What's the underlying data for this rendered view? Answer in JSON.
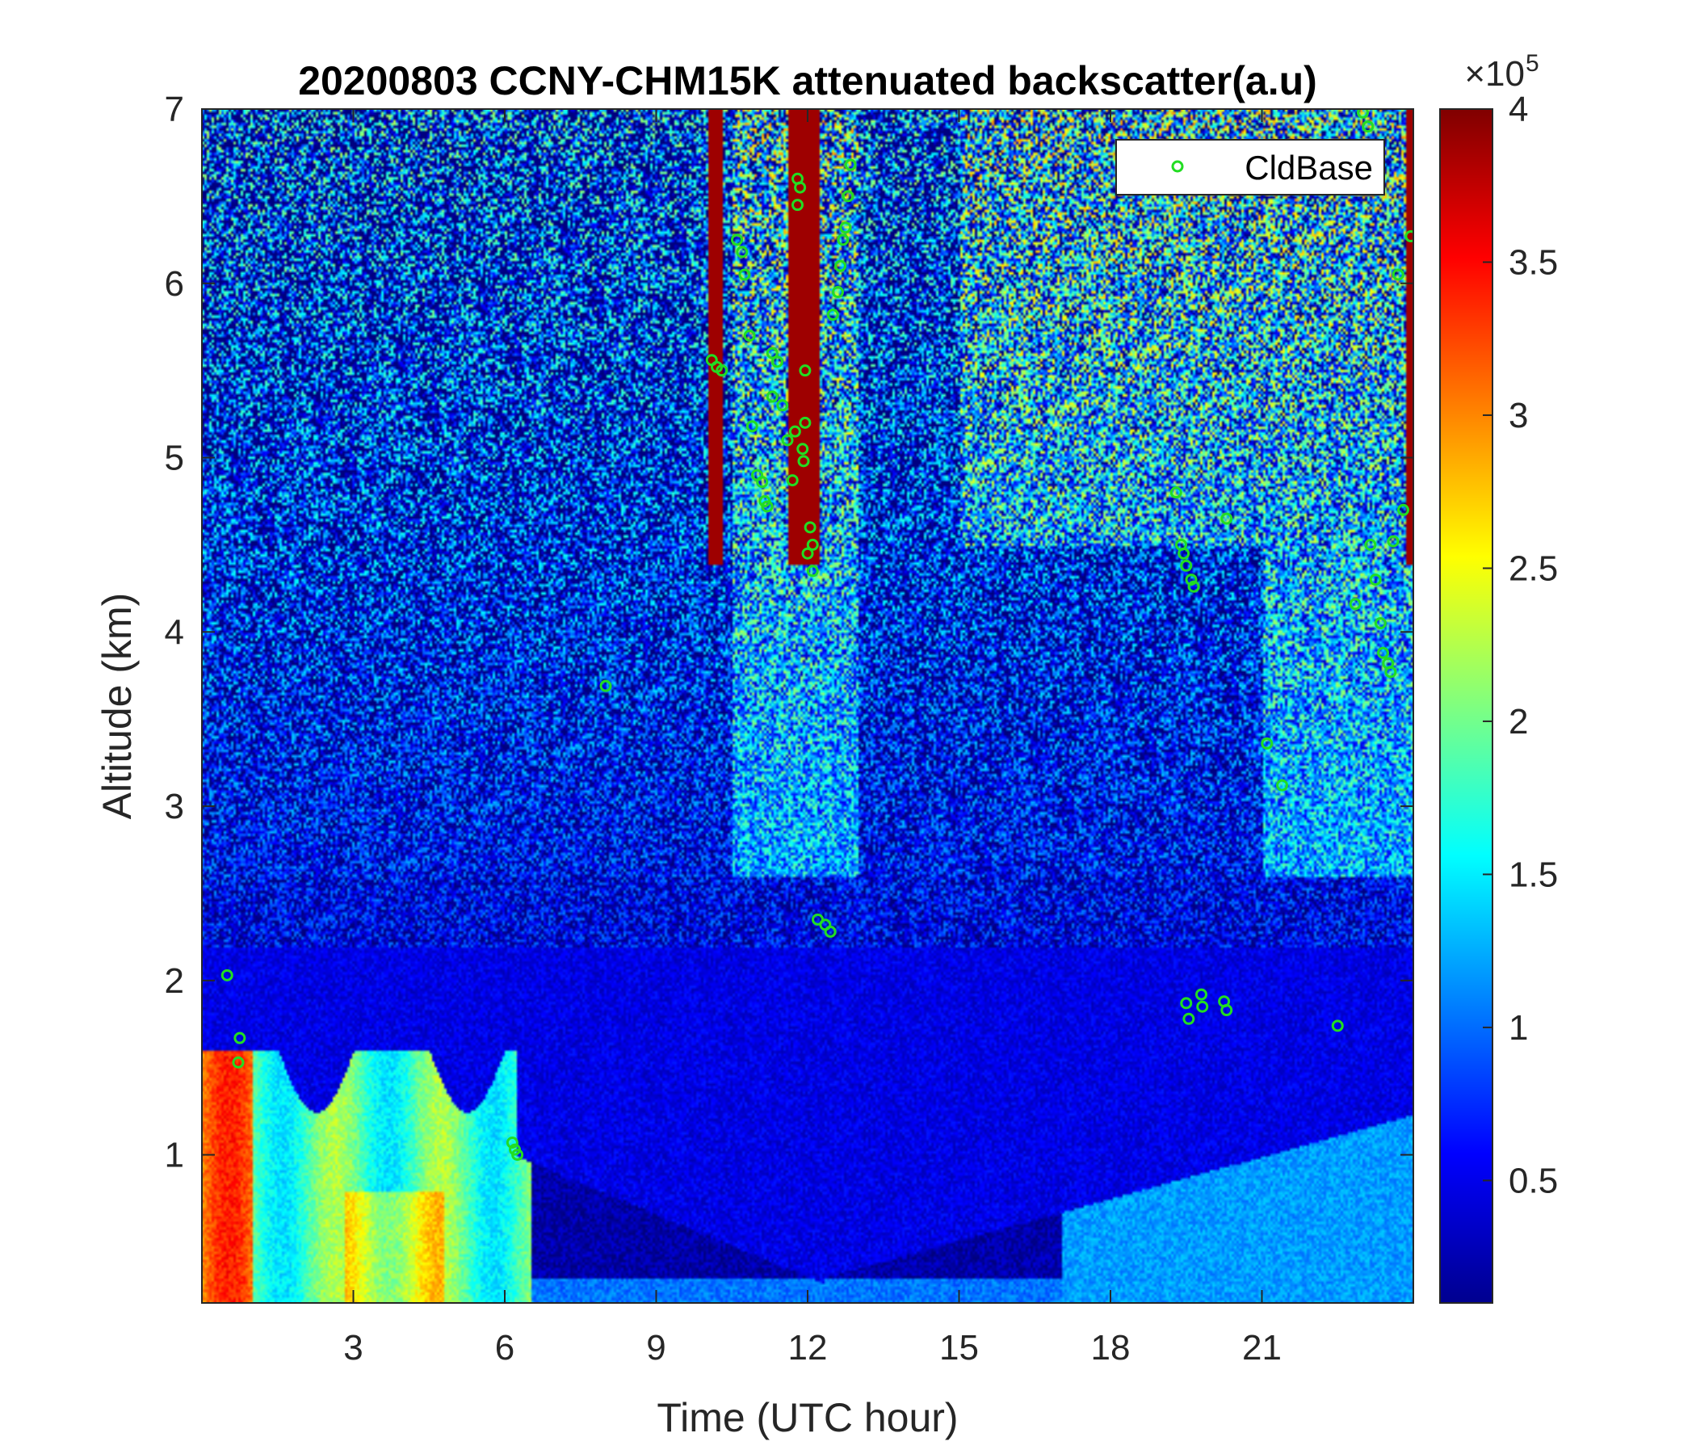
{
  "chart_data": {
    "type": "heatmap",
    "title": "20200803 CCNY-CHM15K attenuated backscatter(a.u)",
    "xlabel": "Time (UTC hour)",
    "ylabel": "Altitude (km)",
    "xlim": [
      0,
      24
    ],
    "ylim": [
      0.15,
      7
    ],
    "x_ticks": [
      3,
      6,
      9,
      12,
      15,
      18,
      21
    ],
    "x_tick_labels": [
      "3",
      "6",
      "9",
      "12",
      "15",
      "18",
      "21"
    ],
    "y_ticks": [
      1,
      2,
      3,
      4,
      5,
      6,
      7
    ],
    "y_tick_labels": [
      "1",
      "2",
      "3",
      "4",
      "5",
      "6",
      "7"
    ],
    "colormap": "jet",
    "colorbar": {
      "range": [
        0.1,
        4
      ],
      "ticks": [
        0.5,
        1,
        1.5,
        2,
        2.5,
        3,
        3.5,
        4
      ],
      "tick_labels": [
        "0.5",
        "1",
        "1.5",
        "2",
        "2.5",
        "3",
        "3.5",
        "4"
      ],
      "exponent_label": "×10",
      "exponent_power": "5"
    },
    "legend": {
      "placement": "top-right",
      "entries": [
        "CldBase"
      ]
    },
    "series": [
      {
        "name": "CldBase",
        "marker": "circle",
        "color": "#22dd22",
        "points": [
          [
            0.5,
            2.03
          ],
          [
            0.75,
            1.67
          ],
          [
            0.72,
            1.53
          ],
          [
            6.15,
            1.07
          ],
          [
            6.2,
            1.03
          ],
          [
            6.25,
            1.0
          ],
          [
            8.0,
            3.69
          ],
          [
            10.1,
            5.56
          ],
          [
            10.2,
            5.52
          ],
          [
            10.3,
            5.5
          ],
          [
            10.6,
            6.25
          ],
          [
            10.7,
            6.18
          ],
          [
            10.75,
            6.05
          ],
          [
            10.85,
            5.7
          ],
          [
            10.9,
            5.18
          ],
          [
            11.0,
            4.9
          ],
          [
            11.1,
            4.86
          ],
          [
            11.15,
            4.75
          ],
          [
            11.2,
            4.72
          ],
          [
            11.3,
            5.6
          ],
          [
            11.4,
            5.55
          ],
          [
            11.3,
            5.35
          ],
          [
            11.5,
            5.3
          ],
          [
            11.6,
            5.1
          ],
          [
            11.7,
            4.87
          ],
          [
            11.75,
            5.15
          ],
          [
            11.8,
            6.6
          ],
          [
            11.85,
            6.55
          ],
          [
            11.8,
            6.45
          ],
          [
            11.95,
            5.5
          ],
          [
            11.95,
            5.2
          ],
          [
            11.9,
            5.05
          ],
          [
            11.92,
            4.98
          ],
          [
            12.05,
            4.6
          ],
          [
            12.1,
            4.5
          ],
          [
            12.0,
            4.45
          ],
          [
            12.1,
            4.35
          ],
          [
            12.2,
            2.35
          ],
          [
            12.35,
            2.32
          ],
          [
            12.45,
            2.28
          ],
          [
            12.5,
            5.82
          ],
          [
            12.6,
            5.95
          ],
          [
            12.65,
            6.1
          ],
          [
            12.7,
            6.25
          ],
          [
            12.75,
            6.32
          ],
          [
            12.8,
            6.5
          ],
          [
            12.85,
            6.68
          ],
          [
            19.3,
            4.8
          ],
          [
            19.4,
            4.5
          ],
          [
            19.45,
            4.45
          ],
          [
            19.5,
            4.38
          ],
          [
            19.6,
            4.3
          ],
          [
            19.65,
            4.26
          ],
          [
            19.5,
            1.87
          ],
          [
            19.55,
            1.78
          ],
          [
            19.8,
            1.92
          ],
          [
            19.82,
            1.85
          ],
          [
            20.25,
            1.88
          ],
          [
            20.3,
            1.83
          ],
          [
            20.3,
            4.65
          ],
          [
            21.1,
            3.36
          ],
          [
            21.4,
            3.12
          ],
          [
            22.5,
            1.74
          ],
          [
            22.85,
            4.16
          ],
          [
            23.0,
            6.98
          ],
          [
            23.1,
            6.9
          ],
          [
            23.15,
            4.5
          ],
          [
            23.25,
            4.3
          ],
          [
            23.35,
            4.05
          ],
          [
            23.4,
            3.88
          ],
          [
            23.5,
            3.82
          ],
          [
            23.55,
            3.77
          ],
          [
            23.6,
            4.52
          ],
          [
            23.7,
            6.05
          ],
          [
            23.8,
            4.7
          ],
          [
            23.95,
            6.27
          ]
        ]
      }
    ]
  }
}
